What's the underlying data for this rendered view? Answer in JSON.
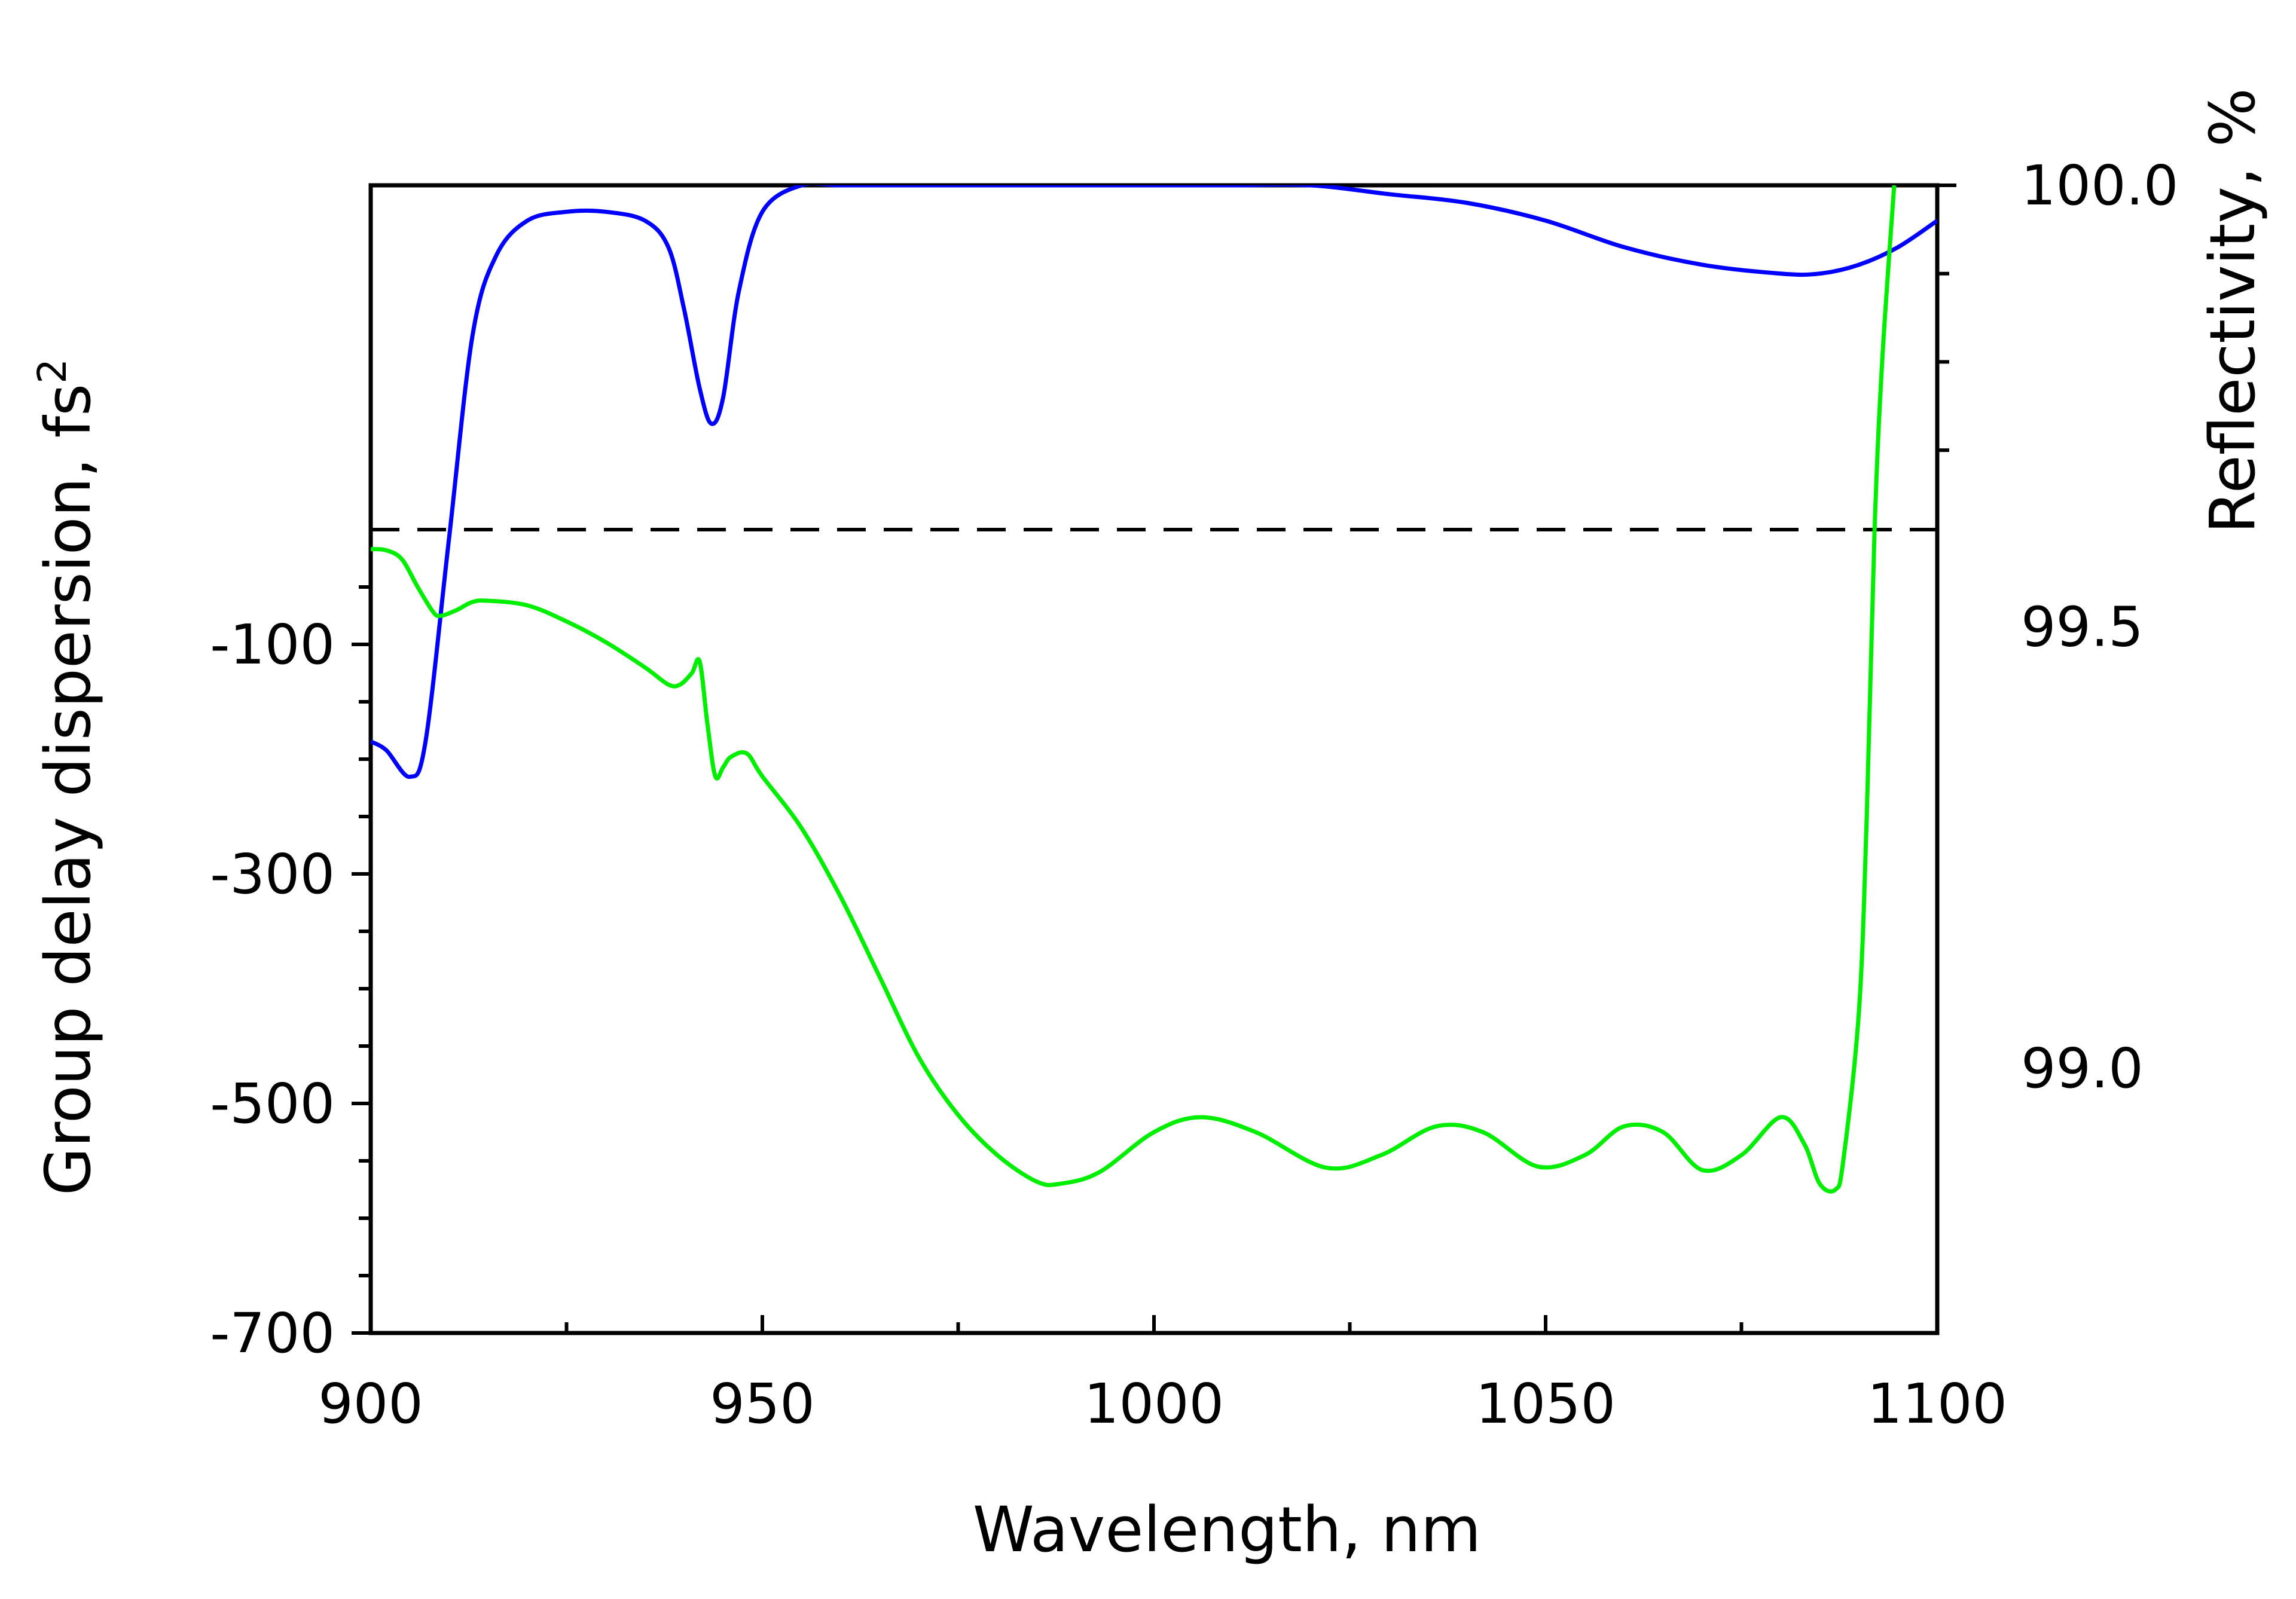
{
  "chart_data": {
    "type": "line",
    "xlabel": "Wavelength, nm",
    "xlim": [
      900,
      1100
    ],
    "x_ticks": [
      "900",
      "950",
      "1000",
      "1050",
      "1100"
    ],
    "left_axis": {
      "label": "Group delay dispersion, fs",
      "label_superscript": "2",
      "ylim": [
        -700,
        300
      ],
      "ticks": [
        "-100",
        "-300",
        "-500",
        "-700"
      ],
      "tick_values": [
        -100,
        -300,
        -500,
        -700
      ]
    },
    "right_axis": {
      "label": "Reflectivity, %",
      "ylim": [
        98.7,
        100.0
      ],
      "ticks": [
        "100.0",
        "99.5",
        "99.0"
      ],
      "tick_values": [
        100.0,
        99.5,
        99.0
      ]
    },
    "reference_line": {
      "axis": "left",
      "value": 0,
      "style": "dashed"
    },
    "series": [
      {
        "axis": "right",
        "color": "#0000ff",
        "x": [
          900,
          902,
          905,
          907,
          910,
          913,
          916,
          920,
          925,
          930,
          935,
          938,
          940,
          942,
          943.5,
          945,
          947,
          950,
          955,
          960,
          970,
          980,
          990,
          1000,
          1010,
          1020,
          1030,
          1040,
          1050,
          1060,
          1070,
          1080,
          1085,
          1090,
          1095,
          1100
        ],
        "values": [
          99.37,
          99.36,
          99.33,
          99.37,
          99.6,
          99.83,
          99.92,
          99.96,
          99.97,
          99.97,
          99.96,
          99.93,
          99.86,
          99.77,
          99.73,
          99.76,
          99.88,
          99.97,
          100.0,
          100.0,
          100.0,
          100.0,
          100.0,
          100.0,
          100.0,
          100.0,
          99.99,
          99.98,
          99.96,
          99.93,
          99.91,
          99.9,
          99.9,
          99.91,
          99.93,
          99.96
        ]
      },
      {
        "axis": "left",
        "color": "#00ee00",
        "x": [
          900,
          902,
          904,
          906,
          908,
          909,
          911,
          913,
          915,
          920,
          925,
          930,
          935,
          938,
          939.5,
          941,
          942,
          943,
          944,
          945,
          946,
          948,
          950,
          955,
          960,
          965,
          970,
          975,
          980,
          985,
          988,
          993,
          1000,
          1006,
          1013,
          1022,
          1029,
          1036,
          1042,
          1049,
          1055,
          1060,
          1065,
          1070,
          1075,
          1080,
          1083,
          1085,
          1087,
          1088,
          1090,
          1091,
          1092,
          1093,
          1094.5
        ],
        "values": [
          -17,
          -18,
          -26,
          -50,
          -72,
          -75,
          -70,
          -63,
          -62,
          -66,
          -80,
          -98,
          -120,
          -135,
          -135,
          -125,
          -115,
          -170,
          -215,
          -207,
          -198,
          -195,
          -215,
          -260,
          -320,
          -390,
          -460,
          -510,
          -545,
          -568,
          -570,
          -560,
          -525,
          -512,
          -525,
          -556,
          -545,
          -520,
          -525,
          -555,
          -545,
          -520,
          -525,
          -558,
          -545,
          -512,
          -535,
          -570,
          -575,
          -550,
          -420,
          -250,
          0,
          150,
          300
        ]
      }
    ]
  }
}
